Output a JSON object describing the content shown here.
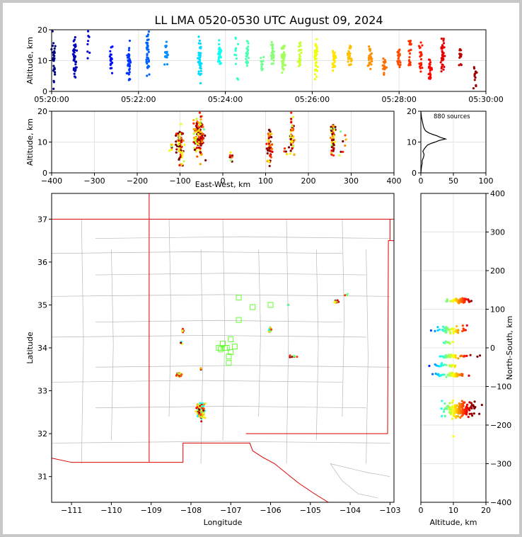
{
  "title": "LL LMA 0520-0530 UTC August 09, 2024",
  "colors": {
    "state_line": "#e00000",
    "county_line": "#b8b8b8",
    "frame": "#c8c8c8",
    "station": "#66ff33",
    "sources_hist": "#000000"
  },
  "chart_data": [
    {
      "id": "time-height",
      "type": "scatter",
      "title": "",
      "xlabel": "",
      "ylabel": "Altitude, km",
      "xlim": [
        0,
        600
      ],
      "ylim": [
        0,
        20
      ],
      "x_ticks": [
        0,
        120,
        240,
        360,
        480,
        600
      ],
      "x_tick_labels": [
        "05:20:00",
        "05:22:00",
        "05:24:00",
        "05:26:00",
        "05:28:00",
        "05:30:00"
      ],
      "y_ticks": [
        0,
        10,
        20
      ],
      "grid": true,
      "clusters": [
        {
          "x": 3,
          "y": 9,
          "ys": 5,
          "n": 30
        },
        {
          "x": 32,
          "y": 11,
          "ys": 3,
          "n": 40
        },
        {
          "x": 50,
          "y": 14,
          "ys": 4,
          "n": 8
        },
        {
          "x": 82,
          "y": 11,
          "ys": 2,
          "n": 18
        },
        {
          "x": 107,
          "y": 9,
          "ys": 3,
          "n": 35
        },
        {
          "x": 133,
          "y": 12,
          "ys": 3,
          "n": 40
        },
        {
          "x": 158,
          "y": 12,
          "ys": 2,
          "n": 18
        },
        {
          "x": 205,
          "y": 10,
          "ys": 3,
          "n": 40
        },
        {
          "x": 232,
          "y": 12,
          "ys": 2,
          "n": 30
        },
        {
          "x": 255,
          "y": 12,
          "ys": 4,
          "n": 12
        },
        {
          "x": 270,
          "y": 12,
          "ys": 2,
          "n": 25
        },
        {
          "x": 290,
          "y": 8,
          "ys": 2,
          "n": 12
        },
        {
          "x": 305,
          "y": 12,
          "ys": 2,
          "n": 25
        },
        {
          "x": 320,
          "y": 10,
          "ys": 3,
          "n": 40
        },
        {
          "x": 343,
          "y": 12,
          "ys": 2,
          "n": 25
        },
        {
          "x": 365,
          "y": 11,
          "ys": 3,
          "n": 40
        },
        {
          "x": 390,
          "y": 10,
          "ys": 2,
          "n": 30
        },
        {
          "x": 412,
          "y": 12,
          "ys": 2,
          "n": 25
        },
        {
          "x": 440,
          "y": 11,
          "ys": 2,
          "n": 30
        },
        {
          "x": 460,
          "y": 8,
          "ys": 2,
          "n": 20
        },
        {
          "x": 480,
          "y": 11,
          "ys": 2,
          "n": 25
        },
        {
          "x": 495,
          "y": 12,
          "ys": 3,
          "n": 20
        },
        {
          "x": 510,
          "y": 10,
          "ys": 3,
          "n": 25
        },
        {
          "x": 523,
          "y": 7,
          "ys": 2,
          "n": 25
        },
        {
          "x": 540,
          "y": 12,
          "ys": 3,
          "n": 40
        },
        {
          "x": 565,
          "y": 12,
          "ys": 2,
          "n": 15
        },
        {
          "x": 585,
          "y": 5,
          "ys": 2,
          "n": 12
        }
      ]
    },
    {
      "id": "ew-height",
      "type": "scatter",
      "title": "",
      "xlabel": "East-West, km",
      "ylabel": "Altitude, km",
      "xlim": [
        -400,
        400
      ],
      "ylim": [
        0,
        20
      ],
      "x_ticks": [
        -400,
        -300,
        -200,
        -100,
        0,
        100,
        200,
        300,
        400
      ],
      "y_ticks": [
        0,
        10,
        20
      ],
      "grid": true,
      "clusters": [
        {
          "x": -100,
          "y": 9,
          "xs": 4,
          "ys": 3,
          "n": 70
        },
        {
          "x": -120,
          "y": 9,
          "xs": 2,
          "ys": 1,
          "n": 6
        },
        {
          "x": -55,
          "y": 12,
          "xs": 6,
          "ys": 3,
          "n": 130
        },
        {
          "x": 20,
          "y": 5,
          "xs": 2,
          "ys": 1,
          "n": 8
        },
        {
          "x": 110,
          "y": 8,
          "xs": 3,
          "ys": 3,
          "n": 50
        },
        {
          "x": 145,
          "y": 7,
          "xs": 2,
          "ys": 1,
          "n": 4
        },
        {
          "x": 162,
          "y": 12,
          "xs": 3,
          "ys": 3,
          "n": 50
        },
        {
          "x": 258,
          "y": 11,
          "xs": 3,
          "ys": 3,
          "n": 60
        },
        {
          "x": 280,
          "y": 10,
          "xs": 5,
          "ys": 3,
          "n": 8
        }
      ]
    },
    {
      "id": "histogram",
      "type": "line",
      "title": "",
      "xlabel": "",
      "ylabel": "",
      "xlim": [
        0,
        100
      ],
      "ylim": [
        0,
        20
      ],
      "x_ticks": [
        0,
        50,
        100
      ],
      "y_ticks": [
        0,
        10,
        20
      ],
      "annotation": "880 sources",
      "x": [
        0,
        1,
        2,
        2,
        4,
        5,
        3,
        6,
        10,
        15,
        22,
        28,
        38,
        30,
        25,
        18,
        12,
        8,
        6,
        4,
        3,
        2,
        1,
        0
      ],
      "y": [
        0,
        2,
        3,
        4,
        5,
        6,
        7,
        8,
        9,
        9.5,
        10,
        10.5,
        11,
        11.5,
        12,
        12.5,
        13,
        13.5,
        14,
        15,
        16,
        17,
        18,
        20
      ]
    },
    {
      "id": "plan-view",
      "type": "scatter",
      "title": "",
      "xlabel": "Longitude",
      "ylabel": "Latitude",
      "xlim": [
        -111.5,
        -102.9
      ],
      "ylim": [
        30.4,
        37.6
      ],
      "x_ticks": [
        -111,
        -110,
        -109,
        -108,
        -107,
        -106,
        -105,
        -104,
        -103
      ],
      "y_ticks": [
        31,
        32,
        33,
        34,
        35,
        36,
        37
      ],
      "grid": false,
      "stations": [
        [
          -106.8,
          35.17
        ],
        [
          -106.45,
          34.95
        ],
        [
          -106.0,
          35.0
        ],
        [
          -106.8,
          34.65
        ],
        [
          -107.0,
          34.2
        ],
        [
          -107.2,
          34.1
        ],
        [
          -107.3,
          34.0
        ],
        [
          -107.1,
          34.0
        ],
        [
          -106.9,
          34.03
        ],
        [
          -107.0,
          33.9
        ],
        [
          -107.05,
          33.8
        ],
        [
          -107.05,
          33.65
        ],
        [
          -107.15,
          34.0
        ],
        [
          -107.25,
          33.97
        ]
      ],
      "clusters": [
        {
          "x": -107.75,
          "y": 32.55,
          "xs": 0.05,
          "ys": 0.1,
          "n": 120
        },
        {
          "x": -108.3,
          "y": 33.38,
          "xs": 0.03,
          "ys": 0.02,
          "n": 25
        },
        {
          "x": -108.2,
          "y": 34.4,
          "xs": 0.02,
          "ys": 0.02,
          "n": 8
        },
        {
          "x": -108.25,
          "y": 34.12,
          "xs": 0.02,
          "ys": 0.02,
          "n": 4
        },
        {
          "x": -107.75,
          "y": 33.5,
          "xs": 0.02,
          "ys": 0.01,
          "n": 4
        },
        {
          "x": -106.0,
          "y": 34.42,
          "xs": 0.02,
          "ys": 0.03,
          "n": 20
        },
        {
          "x": -105.45,
          "y": 33.8,
          "xs": 0.04,
          "ys": 0.01,
          "n": 15
        },
        {
          "x": -104.35,
          "y": 35.08,
          "xs": 0.03,
          "ys": 0.02,
          "n": 25
        },
        {
          "x": -104.1,
          "y": 35.25,
          "xs": 0.02,
          "ys": 0.02,
          "n": 5
        },
        {
          "x": -105.55,
          "y": 35.0,
          "xs": 0.01,
          "ys": 0.01,
          "n": 2
        }
      ]
    },
    {
      "id": "height-ns",
      "type": "scatter",
      "title": "",
      "xlabel": "Altitude, km",
      "ylabel": "North-South, km",
      "xlim": [
        0,
        20
      ],
      "ylim": [
        -400,
        400
      ],
      "x_ticks": [
        0,
        10,
        20
      ],
      "y_ticks": [
        -400,
        -300,
        -200,
        -100,
        0,
        100,
        200,
        300,
        400
      ],
      "grid": true,
      "clusters": [
        {
          "x": 12,
          "y": 123,
          "xs": 2.5,
          "ys": 3,
          "n": 50
        },
        {
          "x": 9,
          "y": 47,
          "xs": 2.5,
          "ys": 5,
          "n": 50
        },
        {
          "x": 8,
          "y": 13,
          "xs": 1,
          "ys": 2,
          "n": 10
        },
        {
          "x": 11,
          "y": -22,
          "xs": 3,
          "ys": 2,
          "n": 40
        },
        {
          "x": 7,
          "y": -45,
          "xs": 2,
          "ys": 2,
          "n": 20
        },
        {
          "x": 9,
          "y": -70,
          "xs": 2.5,
          "ys": 3,
          "n": 50
        },
        {
          "x": 12,
          "y": -160,
          "xs": 2.5,
          "ys": 10,
          "n": 140
        },
        {
          "x": 10,
          "y": -230,
          "xs": 0.2,
          "ys": 1,
          "n": 1
        }
      ]
    }
  ]
}
